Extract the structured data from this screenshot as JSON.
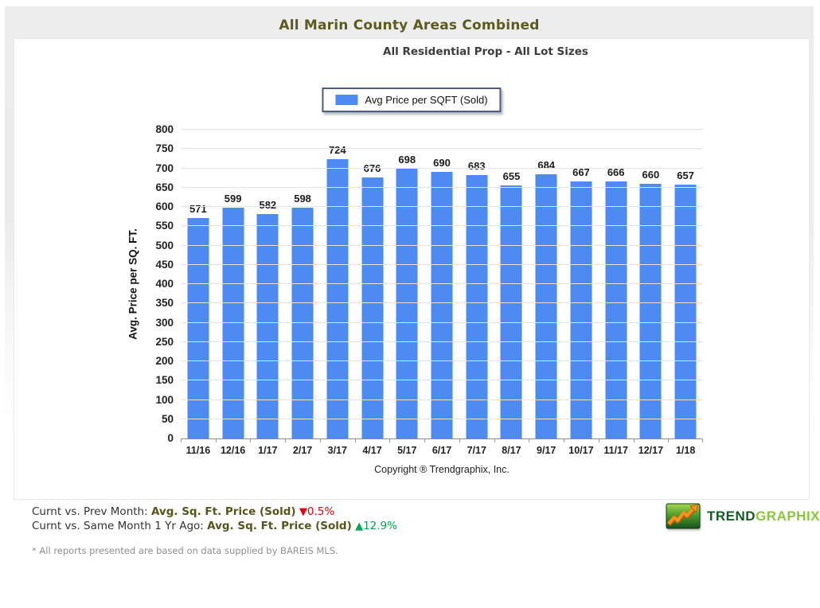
{
  "header": {
    "title": "All Marin County Areas Combined"
  },
  "chart": {
    "subtitle": "All Residential Prop - All Lot Sizes",
    "legend_label": "Avg Price per SQFT (Sold)",
    "copyright": "Copyright ® Trendgraphix, Inc."
  },
  "chart_data": {
    "type": "bar",
    "title": "All Residential Prop - All Lot Sizes",
    "categories": [
      "11/16",
      "12/16",
      "1/17",
      "2/17",
      "3/17",
      "4/17",
      "5/17",
      "6/17",
      "7/17",
      "8/17",
      "9/17",
      "10/17",
      "11/17",
      "12/17",
      "1/18"
    ],
    "series": [
      {
        "name": "Avg Price per SQFT (Sold)",
        "values": [
          571,
          599,
          582,
          598,
          724,
          676,
          698,
          690,
          683,
          655,
          684,
          667,
          666,
          660,
          657
        ]
      }
    ],
    "xlabel": "",
    "ylabel": "Avg. Price per SQ. FT.",
    "ylim": [
      0,
      800
    ],
    "ytick_step": 50,
    "grid": true,
    "legend_position": "top",
    "bar_color": "#4d8af2",
    "value_labels": true
  },
  "stats": {
    "rows": [
      {
        "prefix": "Curnt vs. Prev Month: ",
        "metric": "Avg. Sq. Ft. Price (Sold)",
        "arrow": "▼",
        "value": "0.5%",
        "direction": "down"
      },
      {
        "prefix": "Curnt vs. Same Month 1 Yr Ago: ",
        "metric": "Avg. Sq. Ft. Price (Sold)",
        "arrow": "▲",
        "value": "12.9%",
        "direction": "up"
      }
    ],
    "down_color": "#e8000d",
    "up_color": "#00a651"
  },
  "logo": {
    "part1": "TREND",
    "part2": "GRAPHIX",
    "icon": "trend-up-chart-icon"
  },
  "footnote": "* All reports presented are based on data supplied by BAREIS MLS.",
  "colors": {
    "title_olive": "#5c5c20",
    "bar_blue": "#4d8af2",
    "legend_border": "#4d5c80"
  }
}
